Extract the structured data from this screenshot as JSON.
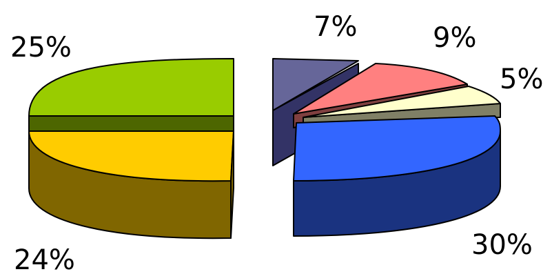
{
  "chart_data": {
    "type": "pie",
    "title": "",
    "values": [
      25,
      24,
      7,
      9,
      5,
      30
    ],
    "labels": [
      "25%",
      "24%",
      "7%",
      "9%",
      "5%",
      "30%"
    ],
    "colors": {
      "top": [
        "#99cc00",
        "#ffcc00",
        "#666699",
        "#ff8080",
        "#ffffcc",
        "#3366ff"
      ],
      "side": [
        "#4d6600",
        "#806600",
        "#333366",
        "#804040",
        "#808066",
        "#1a3380"
      ]
    },
    "legend": "none",
    "grid": false
  }
}
